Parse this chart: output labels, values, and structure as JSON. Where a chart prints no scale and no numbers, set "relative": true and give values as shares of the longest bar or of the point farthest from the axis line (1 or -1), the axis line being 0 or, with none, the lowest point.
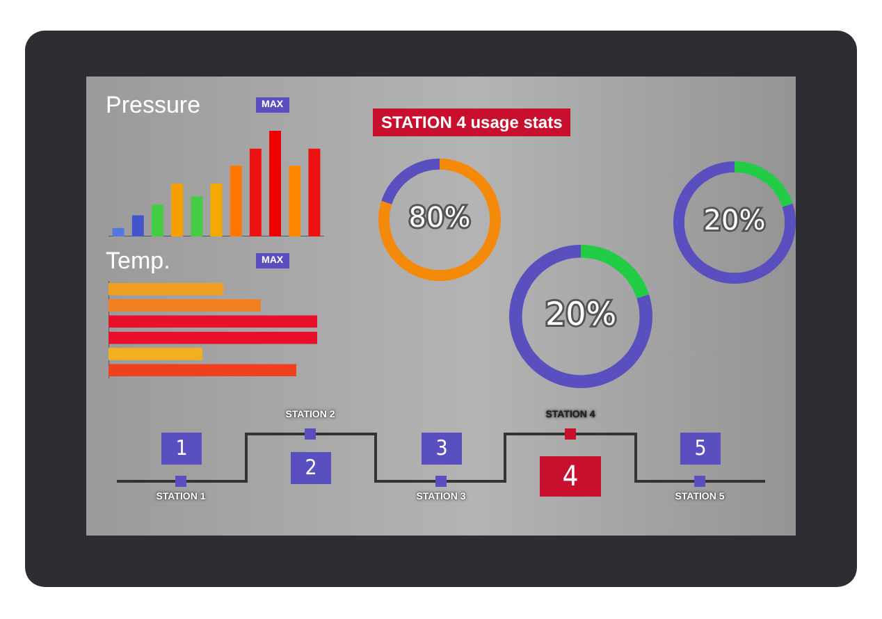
{
  "chart_data": [
    {
      "type": "bar",
      "title": "Pressure",
      "relative": true,
      "categories": [
        null,
        null,
        null,
        null,
        null,
        null,
        null,
        null,
        null,
        null,
        null
      ],
      "values": [
        0.08,
        0.2,
        0.3,
        0.5,
        0.38,
        0.5,
        0.67,
        0.83,
        1,
        0.67,
        0.83
      ],
      "colors": [
        "#5577dd",
        "#4455cc",
        "#44cc44",
        "#f5a000",
        "#44cc44",
        "#f5a800",
        "#ff7700",
        "#ee1111",
        "#ee0000",
        "#ff8800",
        "#ee1111"
      ],
      "annotations": [
        "MAX"
      ]
    },
    {
      "type": "bar",
      "title": "Temp.",
      "orientation": "horizontal",
      "relative": true,
      "categories": [
        null,
        null,
        null,
        null,
        null,
        null
      ],
      "values": [
        0.55,
        0.73,
        1,
        1,
        0.45,
        0.9
      ],
      "colors": [
        "#f0a020",
        "#f08020",
        "#e8102a",
        "#e8102a",
        "#f0b020",
        "#f04020"
      ],
      "annotations": [
        "MAX"
      ]
    },
    {
      "type": "donut",
      "title": "STATION 4 usage stats",
      "categories": [
        null,
        null
      ],
      "values": [
        80,
        20
      ],
      "colors": [
        "#f58a0a",
        "#5a4fbf"
      ],
      "value_labels": [
        "80%",
        null
      ]
    },
    {
      "type": "donut",
      "categories": [
        null,
        null
      ],
      "values": [
        20,
        80
      ],
      "colors": [
        "#22cc44",
        "#5a4fbf"
      ],
      "value_labels": [
        "20%",
        null
      ]
    },
    {
      "type": "donut",
      "categories": [
        null,
        null
      ],
      "values": [
        20,
        80
      ],
      "colors": [
        "#22cc44",
        "#5a4fbf"
      ],
      "value_labels": [
        "20%",
        null
      ]
    },
    {
      "type": "other",
      "annotations": [
        "1",
        "STATION 1",
        "STATION 2",
        "2",
        "3",
        "STATION 3",
        "STATION 4",
        "4",
        "5",
        "STATION 5"
      ]
    }
  ]
}
